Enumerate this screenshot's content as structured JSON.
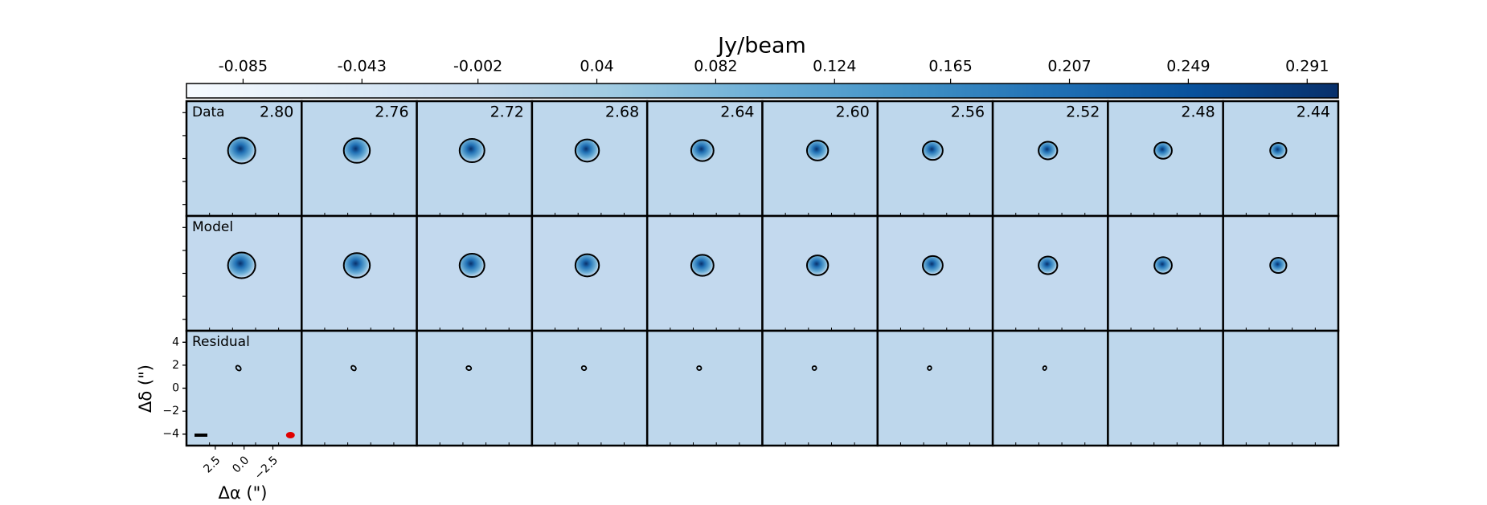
{
  "chart_data": {
    "type": "channel_map",
    "colorbar_label": "Jy/beam",
    "colormap": "Blues",
    "clim": [
      -0.105,
      0.302
    ],
    "cticks": [
      -0.085,
      -0.043,
      -0.002,
      0.04,
      0.082,
      0.124,
      0.165,
      0.207,
      0.249,
      0.291
    ],
    "rows": [
      "Data",
      "Model",
      "Residual"
    ],
    "channels": [
      {
        "value": 2.8,
        "label": "2.80"
      },
      {
        "value": 2.76,
        "label": "2.76"
      },
      {
        "value": 2.72,
        "label": "2.72"
      },
      {
        "value": 2.68,
        "label": "2.68"
      },
      {
        "value": 2.64,
        "label": "2.64"
      },
      {
        "value": 2.6,
        "label": "2.60"
      },
      {
        "value": 2.56,
        "label": "2.56"
      },
      {
        "value": 2.52,
        "label": "2.52"
      },
      {
        "value": 2.48,
        "label": "2.48"
      },
      {
        "value": 2.44,
        "label": "2.44"
      }
    ],
    "xlabel": "Δα (\")",
    "ylabel": "Δδ (\")",
    "xlim": [
      5,
      -5
    ],
    "ylim": [
      -5,
      5
    ],
    "xticks": [
      2.5,
      {
        "value": 0,
        "label": "0.0"
      },
      {
        "value": -2.5,
        "label": "−2.5"
      }
    ],
    "yticks": [
      4,
      2,
      0,
      {
        "value": -2,
        "label": "−2"
      },
      {
        "value": -4,
        "label": "−4"
      }
    ]
  }
}
